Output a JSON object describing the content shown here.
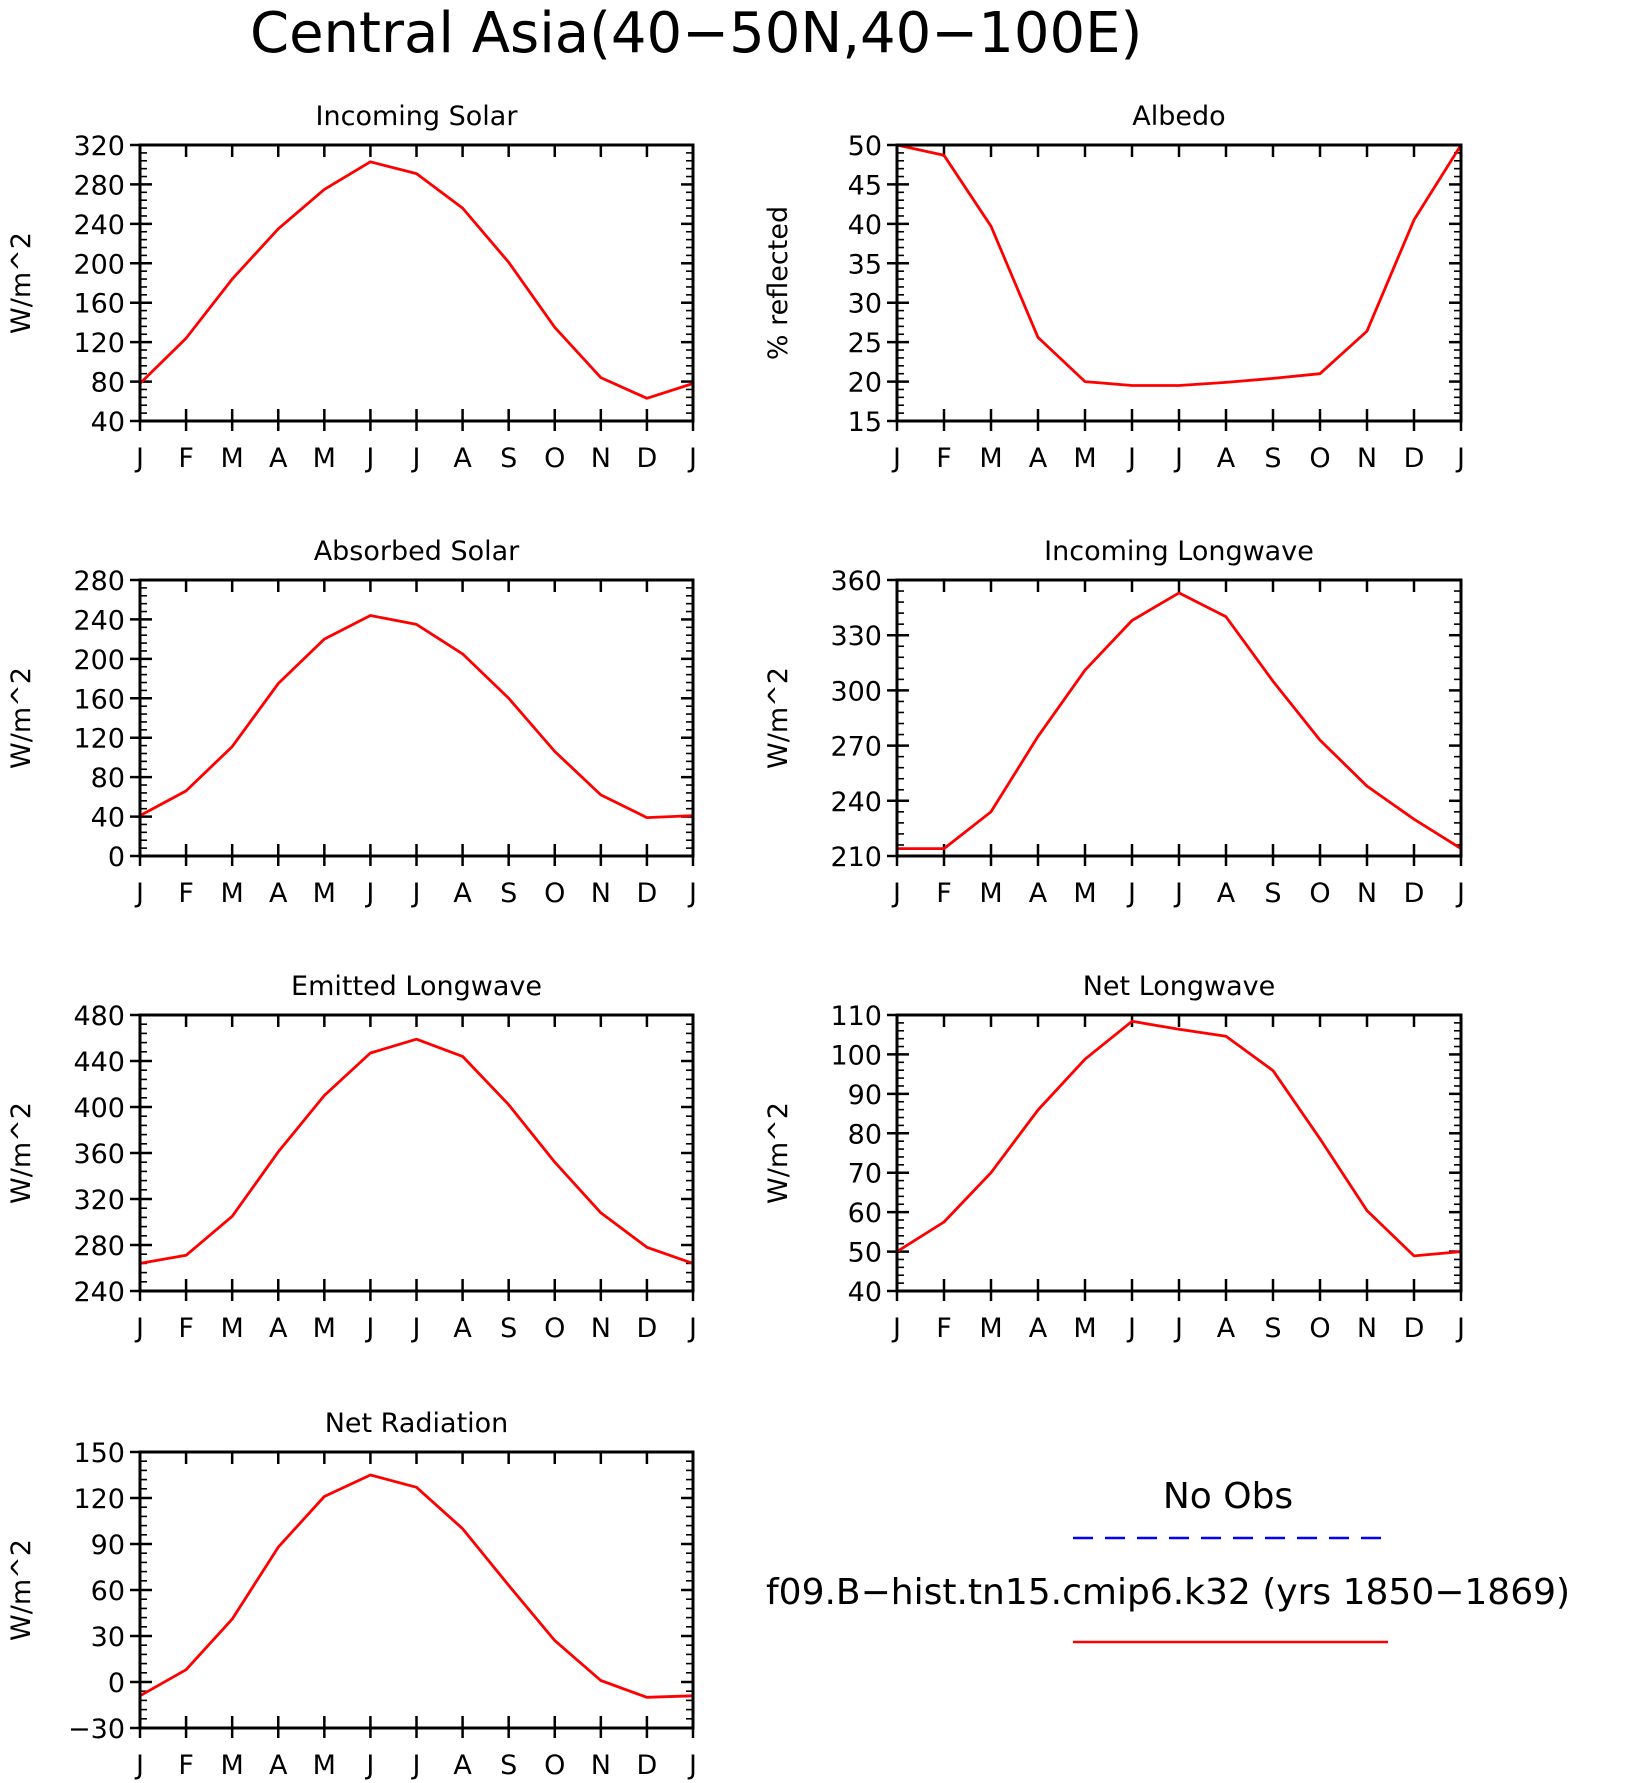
{
  "title": "Central Asia(40−50N,40−100E)",
  "colors": {
    "model": "#ff0000",
    "obs": "#0000ff"
  },
  "legend": {
    "obs_label": "No Obs",
    "model_label": "f09.B−hist.tn15.cmip6.k32 (yrs 1850−1869)"
  },
  "chart_data": [
    {
      "type": "line",
      "title": "Incoming Solar",
      "ylabel": "W/m^2",
      "categories": [
        "J",
        "F",
        "M",
        "A",
        "M",
        "J",
        "J",
        "A",
        "S",
        "O",
        "N",
        "D",
        "J"
      ],
      "ylim": [
        40,
        320
      ],
      "yticks": [
        40,
        80,
        120,
        160,
        200,
        240,
        280,
        320
      ],
      "series": [
        {
          "values": [
            78,
            124,
            184,
            235,
            275,
            303,
            291,
            256,
            201,
            135,
            84,
            63,
            78
          ]
        }
      ]
    },
    {
      "type": "line",
      "title": "Albedo",
      "ylabel": "% reflected",
      "categories": [
        "J",
        "F",
        "M",
        "A",
        "M",
        "J",
        "J",
        "A",
        "S",
        "O",
        "N",
        "D",
        "J"
      ],
      "ylim": [
        15,
        50
      ],
      "yticks": [
        15,
        20,
        25,
        30,
        35,
        40,
        45,
        50
      ],
      "series": [
        {
          "values": [
            50,
            48.7,
            39.7,
            25.6,
            20,
            19.5,
            19.5,
            19.9,
            20.4,
            21,
            26.4,
            40.5,
            50
          ]
        }
      ]
    },
    {
      "type": "line",
      "title": "Absorbed Solar",
      "ylabel": "W/m^2",
      "categories": [
        "J",
        "F",
        "M",
        "A",
        "M",
        "J",
        "J",
        "A",
        "S",
        "O",
        "N",
        "D",
        "J"
      ],
      "ylim": [
        0,
        280
      ],
      "yticks": [
        0,
        40,
        80,
        120,
        160,
        200,
        240,
        280
      ],
      "series": [
        {
          "values": [
            41,
            66,
            111,
            175,
            220,
            244,
            235,
            205,
            160,
            106,
            62,
            39,
            41
          ]
        }
      ]
    },
    {
      "type": "line",
      "title": "Incoming Longwave",
      "ylabel": "W/m^2",
      "categories": [
        "J",
        "F",
        "M",
        "A",
        "M",
        "J",
        "J",
        "A",
        "S",
        "O",
        "N",
        "D",
        "J"
      ],
      "ylim": [
        210,
        360
      ],
      "yticks": [
        210,
        240,
        270,
        300,
        330,
        360
      ],
      "series": [
        {
          "values": [
            214,
            214,
            234,
            275,
            311,
            338,
            353,
            340,
            305,
            273,
            248,
            230,
            214
          ]
        }
      ]
    },
    {
      "type": "line",
      "title": "Emitted Longwave",
      "ylabel": "W/m^2",
      "categories": [
        "J",
        "F",
        "M",
        "A",
        "M",
        "J",
        "J",
        "A",
        "S",
        "O",
        "N",
        "D",
        "J"
      ],
      "ylim": [
        240,
        480
      ],
      "yticks": [
        240,
        280,
        320,
        360,
        400,
        440,
        480
      ],
      "series": [
        {
          "values": [
            264,
            271,
            305,
            361,
            410,
            447,
            459,
            444,
            402,
            352,
            308,
            278,
            264
          ]
        }
      ]
    },
    {
      "type": "line",
      "title": "Net Longwave",
      "ylabel": "W/m^2",
      "categories": [
        "J",
        "F",
        "M",
        "A",
        "M",
        "J",
        "J",
        "A",
        "S",
        "O",
        "N",
        "D",
        "J"
      ],
      "ylim": [
        40,
        110
      ],
      "yticks": [
        40,
        50,
        60,
        70,
        80,
        90,
        100,
        110
      ],
      "series": [
        {
          "values": [
            50,
            57.5,
            70,
            85.9,
            98.8,
            108.4,
            106.4,
            104.6,
            95.9,
            78.6,
            60.4,
            48.9,
            50
          ]
        }
      ]
    },
    {
      "type": "line",
      "title": "Net Radiation",
      "ylabel": "W/m^2",
      "categories": [
        "J",
        "F",
        "M",
        "A",
        "M",
        "J",
        "J",
        "A",
        "S",
        "O",
        "N",
        "D",
        "J"
      ],
      "ylim": [
        -30,
        150
      ],
      "yticks": [
        -30,
        0,
        30,
        60,
        90,
        120,
        150
      ],
      "series": [
        {
          "values": [
            -9,
            8,
            41,
            88,
            121,
            135,
            127,
            100,
            63,
            27,
            1,
            -10,
            -9
          ]
        }
      ]
    }
  ]
}
